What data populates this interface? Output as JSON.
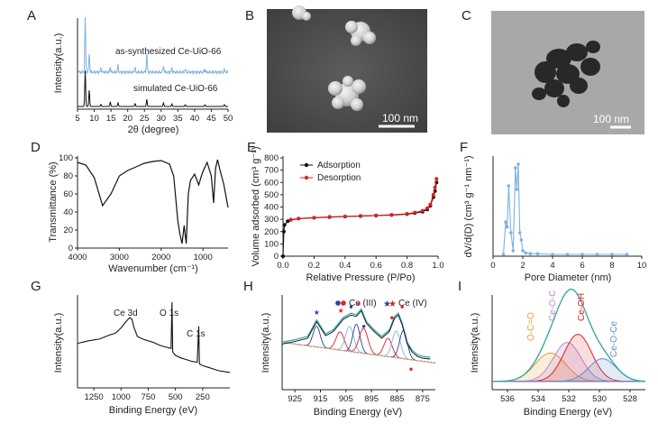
{
  "panels": {
    "A": {
      "label": "A",
      "xlabel": "2θ (degree)",
      "ylabel": "Intensity(a.u.)",
      "top_trace": "as-synthesized Ce-UiO-66",
      "bottom_trace": "simulated Ce-UiO-66",
      "xticks": [
        "5",
        "10",
        "15",
        "20",
        "25",
        "30",
        "35",
        "40",
        "45",
        "50"
      ]
    },
    "B": {
      "label": "B",
      "scale": "100 nm"
    },
    "C": {
      "label": "C",
      "scale": "100 nm"
    },
    "D": {
      "label": "D",
      "xlabel": "Wavenumber (cm⁻¹)",
      "ylabel": "Transmittance (%)",
      "xticks": [
        "4000",
        "3000",
        "2000",
        "1000"
      ],
      "yticks": [
        "100",
        "80",
        "60",
        "40",
        "20",
        "0"
      ]
    },
    "E": {
      "label": "E",
      "xlabel": "Relative Pressure (P/Po)",
      "ylabel": "Volume adsorbed (cm³ g⁻¹)",
      "legend": [
        "Adsorption",
        "Desorption"
      ],
      "xticks": [
        "0.0",
        "0.2",
        "0.4",
        "0.6",
        "0.8",
        "1.0"
      ],
      "yticks": [
        "0",
        "100",
        "200",
        "300",
        "400",
        "500",
        "600",
        "700",
        "800"
      ]
    },
    "F": {
      "label": "F",
      "xlabel": "Pore Diameter (nm)",
      "ylabel": "dV/d(D) (cm³ g⁻¹ nm⁻¹)",
      "xticks": [
        "0",
        "2",
        "4",
        "6",
        "8",
        "10"
      ]
    },
    "G": {
      "label": "G",
      "xlabel": "Binding Energy (eV)",
      "ylabel": "Intensity(a.u.)",
      "annotations": [
        "Ce 3d",
        "O 1s",
        "C 1s"
      ],
      "xticks": [
        "1250",
        "1000",
        "750",
        "500",
        "250"
      ]
    },
    "H": {
      "label": "H",
      "xlabel": "Binding Energy (eV)",
      "ylabel": "Intensity(a.u.)",
      "legend": [
        "Ce (III)",
        "Ce (IV)"
      ],
      "xticks": [
        "925",
        "915",
        "905",
        "895",
        "885",
        "875"
      ]
    },
    "I": {
      "label": "I",
      "xlabel": "Binding Energy (eV)",
      "ylabel": "Intensity(a.u.)",
      "peaks": [
        "O-C=O",
        "Ce-O-C",
        "Ce-OH",
        "Ce-O-Ce"
      ],
      "xticks": [
        "536",
        "534",
        "532",
        "530",
        "528"
      ]
    }
  },
  "colors": {
    "black": "#111111",
    "blue": "#7fb3dd",
    "red": "#e02020",
    "adsorption": "#111111",
    "desorption": "#e02020",
    "orange": "#e0a030",
    "purple": "#b88ad0",
    "teal": "#3aa9a0",
    "navy": "#2b3f9e"
  },
  "chart_data": [
    {
      "panel": "A",
      "type": "line",
      "title": "",
      "xlabel": "2θ (degree)",
      "ylabel": "Intensity(a.u.)",
      "xlim": [
        5,
        50
      ],
      "series": [
        {
          "name": "as-synthesized Ce-UiO-66",
          "peaks_2theta": [
            7.3,
            8.5,
            12.0,
            14.8,
            17.1,
            22.2,
            25.7,
            30.7,
            33.2,
            37.2,
            43.1,
            48.9
          ],
          "peak_heights": [
            1.0,
            0.35,
            0.08,
            0.1,
            0.12,
            0.08,
            0.35,
            0.12,
            0.08,
            0.06,
            0.06,
            0.05
          ]
        },
        {
          "name": "simulated Ce-UiO-66",
          "peaks_2theta": [
            7.3,
            8.5,
            12.0,
            14.8,
            17.1,
            22.2,
            25.7,
            30.7,
            33.2,
            37.2,
            43.1,
            48.9
          ],
          "peak_heights": [
            1.0,
            0.45,
            0.06,
            0.12,
            0.1,
            0.08,
            0.2,
            0.1,
            0.07,
            0.05,
            0.05,
            0.05
          ]
        }
      ]
    },
    {
      "panel": "D",
      "type": "line",
      "title": "",
      "xlabel": "Wavenumber (cm⁻¹)",
      "ylabel": "Transmittance (%)",
      "xlim": [
        4000,
        400
      ],
      "ylim": [
        0,
        100
      ],
      "x": [
        4000,
        3800,
        3600,
        3400,
        3200,
        3000,
        2800,
        2600,
        2400,
        2200,
        2000,
        1800,
        1700,
        1650,
        1600,
        1550,
        1500,
        1450,
        1400,
        1350,
        1300,
        1200,
        1100,
        1050,
        1000,
        900,
        800,
        745,
        700,
        650,
        600,
        500,
        400
      ],
      "y": [
        95,
        92,
        78,
        47,
        60,
        80,
        86,
        90,
        94,
        96,
        97,
        93,
        80,
        55,
        30,
        15,
        5,
        25,
        5,
        60,
        75,
        82,
        70,
        78,
        85,
        95,
        80,
        50,
        88,
        98,
        88,
        70,
        45
      ]
    },
    {
      "panel": "E",
      "type": "line",
      "title": "",
      "xlabel": "Relative Pressure (P/Po)",
      "ylabel": "Volume adsorbed (cm³ g⁻¹)",
      "xlim": [
        0,
        1
      ],
      "ylim": [
        0,
        800
      ],
      "series": [
        {
          "name": "Adsorption",
          "x": [
            0.0,
            0.005,
            0.01,
            0.03,
            0.05,
            0.1,
            0.2,
            0.3,
            0.4,
            0.5,
            0.6,
            0.7,
            0.8,
            0.85,
            0.9,
            0.93,
            0.95,
            0.97,
            0.98,
            0.99
          ],
          "y": [
            0,
            200,
            255,
            285,
            295,
            305,
            312,
            318,
            322,
            326,
            330,
            335,
            342,
            350,
            362,
            380,
            410,
            480,
            530,
            600
          ]
        },
        {
          "name": "Desorption",
          "x": [
            0.99,
            0.98,
            0.97,
            0.95,
            0.93,
            0.9,
            0.85,
            0.8,
            0.7,
            0.6,
            0.5,
            0.4,
            0.3,
            0.2,
            0.1,
            0.05
          ],
          "y": [
            630,
            560,
            500,
            420,
            390,
            370,
            355,
            345,
            337,
            332,
            328,
            324,
            320,
            314,
            307,
            298
          ]
        }
      ]
    },
    {
      "panel": "F",
      "type": "line",
      "title": "",
      "xlabel": "Pore Diameter (nm)",
      "ylabel": "dV/d(D) (cm³ g⁻¹ nm⁻¹)",
      "xlim": [
        0,
        10
      ],
      "x": [
        0.7,
        0.85,
        0.95,
        1.05,
        1.2,
        1.35,
        1.5,
        1.6,
        1.7,
        1.8,
        1.9,
        2.0,
        2.2,
        2.5,
        3,
        4,
        5,
        6,
        7,
        8,
        9
      ],
      "y": [
        0.0,
        0.45,
        0.38,
        0.95,
        0.3,
        0.05,
        1.2,
        0.9,
        1.25,
        0.3,
        0.2,
        0.05,
        0.02,
        0.01,
        0.01,
        0.0,
        0.0,
        0.0,
        0.0,
        0.0,
        0.0
      ]
    },
    {
      "panel": "G",
      "type": "line",
      "title": "",
      "xlabel": "Binding Energy (eV)",
      "ylabel": "Intensity(a.u.)",
      "xlim": [
        1400,
        0
      ],
      "x": [
        1400,
        1300,
        1200,
        1100,
        1050,
        1000,
        950,
        920,
        900,
        880,
        850,
        800,
        750,
        700,
        650,
        600,
        540,
        532,
        525,
        500,
        450,
        400,
        350,
        300,
        286,
        280,
        250,
        200,
        150,
        100,
        50,
        0
      ],
      "y": [
        0.52,
        0.55,
        0.57,
        0.62,
        0.64,
        0.7,
        0.78,
        0.82,
        0.8,
        0.7,
        0.6,
        0.57,
        0.55,
        0.53,
        0.5,
        0.48,
        0.46,
        1.0,
        0.42,
        0.38,
        0.35,
        0.33,
        0.31,
        0.3,
        0.72,
        0.28,
        0.26,
        0.24,
        0.22,
        0.2,
        0.19,
        0.18
      ]
    },
    {
      "panel": "H",
      "type": "line",
      "title": "",
      "xlabel": "Binding Energy (eV)",
      "ylabel": "Intensity(a.u.)",
      "xlim": [
        930,
        870
      ],
      "x": [
        930,
        925,
        920,
        916.5,
        913,
        910,
        906,
        903,
        901,
        899,
        897,
        894,
        891,
        888,
        886,
        884.5,
        883,
        881,
        879,
        877,
        875,
        872
      ],
      "y": [
        0.55,
        0.58,
        0.62,
        0.82,
        0.65,
        0.7,
        0.85,
        0.9,
        0.88,
        0.95,
        0.8,
        0.7,
        0.62,
        0.7,
        0.86,
        0.9,
        0.78,
        0.55,
        0.45,
        0.4,
        0.38,
        0.37
      ]
    },
    {
      "panel": "I",
      "type": "area",
      "title": "",
      "xlabel": "Binding Energy (eV)",
      "ylabel": "Intensity(a.u.)",
      "xlim": [
        537,
        527
      ],
      "components": [
        {
          "name": "O-C=O",
          "center": 533.2,
          "height": 0.35,
          "width": 1.0
        },
        {
          "name": "Ce-O-C",
          "center": 532.1,
          "height": 0.48,
          "width": 0.9
        },
        {
          "name": "Ce-OH",
          "center": 531.4,
          "height": 0.58,
          "width": 0.9
        },
        {
          "name": "Ce-O-Ce",
          "center": 529.8,
          "height": 0.28,
          "width": 0.9
        }
      ]
    }
  ]
}
